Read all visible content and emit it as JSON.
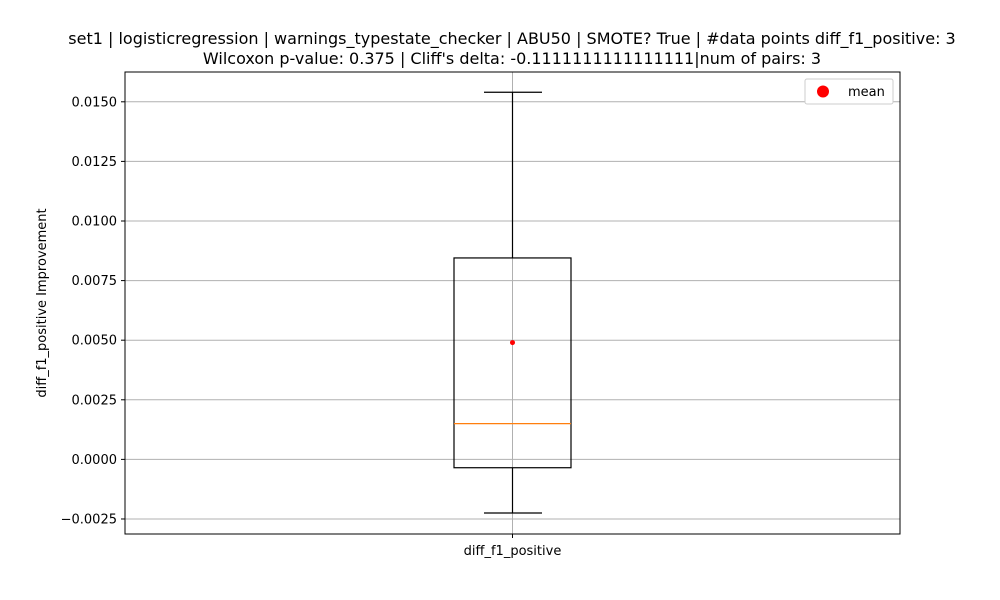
{
  "chart_data": {
    "type": "box",
    "title_line1": "set1 | logisticregression | warnings_typestate_checker | ABU50 | SMOTE? True | #data points diff_f1_positive: 3",
    "title_line2": "Wilcoxon p-value: 0.375 | Cliff's delta: -0.1111111111111111|num of pairs: 3",
    "xlabel": "",
    "ylabel": "diff_f1_positive Improvement",
    "categories": [
      "diff_f1_positive"
    ],
    "ylim": [
      -0.00313,
      0.01625
    ],
    "yticks": [
      -0.0025,
      0.0,
      0.0025,
      0.005,
      0.0075,
      0.01,
      0.0125,
      0.015
    ],
    "ytick_labels": [
      "−0.0025",
      "0.0000",
      "0.0025",
      "0.0050",
      "0.0075",
      "0.0100",
      "0.0125",
      "0.0150"
    ],
    "grid": true,
    "box": {
      "whisker_low": -0.00225,
      "q1": -0.00035,
      "median": 0.0015,
      "q3": 0.00845,
      "whisker_high": 0.0154,
      "mean": 0.0049
    },
    "legend": {
      "position": "top-right",
      "entries": [
        {
          "label": "mean",
          "color": "#ff0000",
          "marker": "circle"
        }
      ]
    },
    "colors": {
      "box": "#000000",
      "median": "#ff7f0e",
      "mean": "#ff0000",
      "grid": "#b0b0b0"
    }
  }
}
